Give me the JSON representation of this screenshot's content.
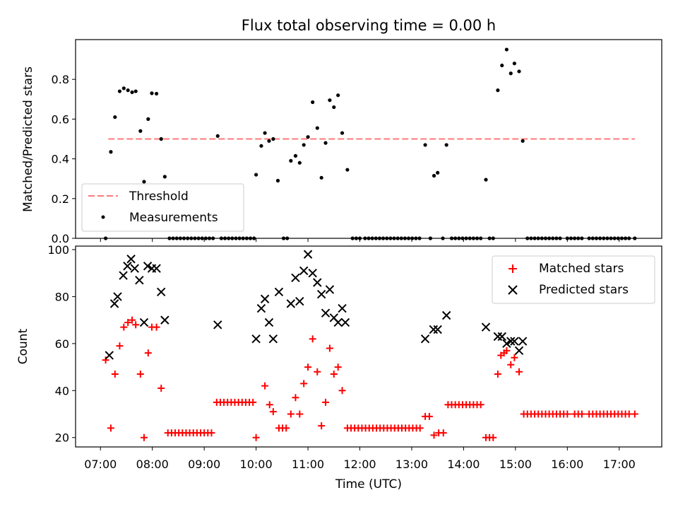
{
  "figure": {
    "title": "Flux total observing time = 0.00 h",
    "colors": {
      "threshold": "#ff7a7a",
      "measurements": "#000000",
      "matched": "#ff0000",
      "predicted": "#000000"
    }
  },
  "chart_data": [
    {
      "type": "scatter",
      "ylabel": "Matched/Predicted stars",
      "xlim": [
        6.52,
        17.82
      ],
      "ylim": [
        0,
        1.0
      ],
      "yticks": [
        0.0,
        0.2,
        0.4,
        0.6,
        0.8
      ],
      "ytick_labels": [
        "0.0",
        "0.2",
        "0.4",
        "0.6",
        "0.8"
      ],
      "x_tick_marks": [
        7,
        8,
        9,
        10,
        11,
        12,
        13,
        14,
        15,
        16,
        17
      ],
      "grid": false,
      "legend_position": "lower-left",
      "legend": [
        {
          "name": "Threshold",
          "marker": "dashed-line"
        },
        {
          "name": "Measurements",
          "marker": "dot"
        }
      ],
      "threshold": {
        "name": "Threshold",
        "y": 0.5,
        "x": [
          7.15,
          17.3
        ]
      },
      "measurements": [
        [
          7.1,
          0.0
        ],
        [
          7.2,
          0.435
        ],
        [
          7.28,
          0.61
        ],
        [
          7.37,
          0.74
        ],
        [
          7.45,
          0.755
        ],
        [
          7.53,
          0.745
        ],
        [
          7.61,
          0.735
        ],
        [
          7.68,
          0.74
        ],
        [
          7.77,
          0.54
        ],
        [
          7.84,
          0.285
        ],
        [
          7.92,
          0.6
        ],
        [
          7.99,
          0.73
        ],
        [
          8.08,
          0.728
        ],
        [
          8.17,
          0.5
        ],
        [
          8.24,
          0.31
        ],
        [
          8.33,
          0.0
        ],
        [
          8.4,
          0.0
        ],
        [
          8.47,
          0.0
        ],
        [
          8.54,
          0.0
        ],
        [
          8.61,
          0.0
        ],
        [
          8.68,
          0.0
        ],
        [
          8.75,
          0.0
        ],
        [
          8.82,
          0.0
        ],
        [
          8.89,
          0.0
        ],
        [
          8.96,
          0.0
        ],
        [
          9.03,
          0.0
        ],
        [
          9.1,
          0.0
        ],
        [
          9.17,
          0.0
        ],
        [
          9.26,
          0.515
        ],
        [
          9.33,
          0.0
        ],
        [
          9.4,
          0.0
        ],
        [
          9.47,
          0.0
        ],
        [
          9.54,
          0.0
        ],
        [
          9.61,
          0.0
        ],
        [
          9.68,
          0.0
        ],
        [
          9.75,
          0.0
        ],
        [
          9.82,
          0.0
        ],
        [
          9.89,
          0.0
        ],
        [
          9.96,
          0.0
        ],
        [
          10.0,
          0.32
        ],
        [
          10.1,
          0.465
        ],
        [
          10.17,
          0.53
        ],
        [
          10.25,
          0.49
        ],
        [
          10.33,
          0.5
        ],
        [
          10.42,
          0.29
        ],
        [
          10.53,
          0.0
        ],
        [
          10.6,
          0.0
        ],
        [
          10.67,
          0.39
        ],
        [
          10.76,
          0.415
        ],
        [
          10.84,
          0.38
        ],
        [
          10.92,
          0.47
        ],
        [
          11.0,
          0.51
        ],
        [
          11.09,
          0.685
        ],
        [
          11.18,
          0.555
        ],
        [
          11.26,
          0.305
        ],
        [
          11.34,
          0.48
        ],
        [
          11.42,
          0.695
        ],
        [
          11.5,
          0.66
        ],
        [
          11.58,
          0.72
        ],
        [
          11.66,
          0.53
        ],
        [
          11.76,
          0.345
        ],
        [
          11.86,
          0.0
        ],
        [
          11.93,
          0.0
        ],
        [
          12.0,
          0.0
        ],
        [
          12.1,
          0.0
        ],
        [
          12.17,
          0.0
        ],
        [
          12.24,
          0.0
        ],
        [
          12.31,
          0.0
        ],
        [
          12.38,
          0.0
        ],
        [
          12.45,
          0.0
        ],
        [
          12.52,
          0.0
        ],
        [
          12.59,
          0.0
        ],
        [
          12.66,
          0.0
        ],
        [
          12.73,
          0.0
        ],
        [
          12.8,
          0.0
        ],
        [
          12.87,
          0.0
        ],
        [
          12.94,
          0.0
        ],
        [
          13.01,
          0.0
        ],
        [
          13.08,
          0.0
        ],
        [
          13.15,
          0.0
        ],
        [
          13.26,
          0.47
        ],
        [
          13.36,
          0.0
        ],
        [
          13.43,
          0.315
        ],
        [
          13.5,
          0.33
        ],
        [
          13.6,
          0.0
        ],
        [
          13.67,
          0.47
        ],
        [
          13.77,
          0.0
        ],
        [
          13.84,
          0.0
        ],
        [
          13.91,
          0.0
        ],
        [
          13.98,
          0.0
        ],
        [
          14.05,
          0.0
        ],
        [
          14.12,
          0.0
        ],
        [
          14.19,
          0.0
        ],
        [
          14.26,
          0.0
        ],
        [
          14.33,
          0.0
        ],
        [
          14.43,
          0.295
        ],
        [
          14.5,
          0.0
        ],
        [
          14.57,
          0.0
        ],
        [
          14.66,
          0.745
        ],
        [
          14.74,
          0.87
        ],
        [
          14.83,
          0.95
        ],
        [
          14.91,
          0.83
        ],
        [
          14.98,
          0.88
        ],
        [
          15.07,
          0.84
        ],
        [
          15.14,
          0.49
        ],
        [
          15.23,
          0.0
        ],
        [
          15.3,
          0.0
        ],
        [
          15.37,
          0.0
        ],
        [
          15.44,
          0.0
        ],
        [
          15.51,
          0.0
        ],
        [
          15.58,
          0.0
        ],
        [
          15.65,
          0.0
        ],
        [
          15.72,
          0.0
        ],
        [
          15.79,
          0.0
        ],
        [
          15.86,
          0.0
        ],
        [
          16.0,
          0.0
        ],
        [
          16.07,
          0.0
        ],
        [
          16.14,
          0.0
        ],
        [
          16.21,
          0.0
        ],
        [
          16.28,
          0.0
        ],
        [
          16.42,
          0.0
        ],
        [
          16.49,
          0.0
        ],
        [
          16.56,
          0.0
        ],
        [
          16.63,
          0.0
        ],
        [
          16.7,
          0.0
        ],
        [
          16.77,
          0.0
        ],
        [
          16.84,
          0.0
        ],
        [
          16.91,
          0.0
        ],
        [
          16.98,
          0.0
        ],
        [
          17.05,
          0.0
        ],
        [
          17.12,
          0.0
        ],
        [
          17.19,
          0.0
        ],
        [
          17.3,
          0.0
        ]
      ]
    },
    {
      "type": "scatter",
      "xlabel": "Time (UTC)",
      "ylabel": "Count",
      "xlim": [
        6.52,
        17.82
      ],
      "ylim": [
        16,
        101.5
      ],
      "xticks": [
        7,
        8,
        9,
        10,
        11,
        12,
        13,
        14,
        15,
        16,
        17
      ],
      "xtick_labels": [
        "07:00",
        "08:00",
        "09:00",
        "10:00",
        "11:00",
        "12:00",
        "13:00",
        "14:00",
        "15:00",
        "16:00",
        "17:00"
      ],
      "yticks": [
        20,
        40,
        60,
        80,
        100
      ],
      "ytick_labels": [
        "20",
        "40",
        "60",
        "80",
        "100"
      ],
      "grid": false,
      "legend_position": "upper-right",
      "legend": [
        {
          "name": "Matched stars",
          "marker": "plus"
        },
        {
          "name": "Predicted stars",
          "marker": "x"
        }
      ],
      "matched": [
        [
          7.1,
          53
        ],
        [
          7.2,
          24
        ],
        [
          7.28,
          47
        ],
        [
          7.37,
          59
        ],
        [
          7.45,
          67
        ],
        [
          7.53,
          69
        ],
        [
          7.61,
          70
        ],
        [
          7.68,
          68
        ],
        [
          7.77,
          47
        ],
        [
          7.84,
          20
        ],
        [
          7.92,
          56
        ],
        [
          7.99,
          67
        ],
        [
          8.08,
          67
        ],
        [
          8.17,
          41
        ],
        [
          8.3,
          22
        ],
        [
          8.37,
          22
        ],
        [
          8.44,
          22
        ],
        [
          8.51,
          22
        ],
        [
          8.58,
          22
        ],
        [
          8.65,
          22
        ],
        [
          8.72,
          22
        ],
        [
          8.79,
          22
        ],
        [
          8.86,
          22
        ],
        [
          8.93,
          22
        ],
        [
          9.0,
          22
        ],
        [
          9.07,
          22
        ],
        [
          9.14,
          22
        ],
        [
          9.24,
          35
        ],
        [
          9.31,
          35
        ],
        [
          9.38,
          35
        ],
        [
          9.45,
          35
        ],
        [
          9.52,
          35
        ],
        [
          9.59,
          35
        ],
        [
          9.66,
          35
        ],
        [
          9.73,
          35
        ],
        [
          9.8,
          35
        ],
        [
          9.87,
          35
        ],
        [
          9.94,
          35
        ],
        [
          10.0,
          20
        ],
        [
          10.17,
          42
        ],
        [
          10.26,
          34
        ],
        [
          10.33,
          31
        ],
        [
          10.44,
          24
        ],
        [
          10.51,
          24
        ],
        [
          10.58,
          24
        ],
        [
          10.67,
          30
        ],
        [
          10.76,
          37
        ],
        [
          10.84,
          30
        ],
        [
          10.92,
          43
        ],
        [
          11.0,
          50
        ],
        [
          11.09,
          62
        ],
        [
          11.18,
          48
        ],
        [
          11.26,
          25
        ],
        [
          11.34,
          35
        ],
        [
          11.42,
          58
        ],
        [
          11.5,
          47
        ],
        [
          11.58,
          50
        ],
        [
          11.66,
          40
        ],
        [
          11.76,
          24
        ],
        [
          11.83,
          24
        ],
        [
          11.9,
          24
        ],
        [
          11.97,
          24
        ],
        [
          12.04,
          24
        ],
        [
          12.11,
          24
        ],
        [
          12.18,
          24
        ],
        [
          12.25,
          24
        ],
        [
          12.32,
          24
        ],
        [
          12.39,
          24
        ],
        [
          12.46,
          24
        ],
        [
          12.53,
          24
        ],
        [
          12.6,
          24
        ],
        [
          12.67,
          24
        ],
        [
          12.74,
          24
        ],
        [
          12.81,
          24
        ],
        [
          12.88,
          24
        ],
        [
          12.95,
          24
        ],
        [
          13.02,
          24
        ],
        [
          13.09,
          24
        ],
        [
          13.16,
          24
        ],
        [
          13.26,
          29
        ],
        [
          13.34,
          29
        ],
        [
          13.43,
          21
        ],
        [
          13.52,
          22
        ],
        [
          13.61,
          22
        ],
        [
          13.7,
          34
        ],
        [
          13.77,
          34
        ],
        [
          13.84,
          34
        ],
        [
          13.91,
          34
        ],
        [
          13.98,
          34
        ],
        [
          14.05,
          34
        ],
        [
          14.12,
          34
        ],
        [
          14.19,
          34
        ],
        [
          14.26,
          34
        ],
        [
          14.33,
          34
        ],
        [
          14.43,
          20
        ],
        [
          14.5,
          20
        ],
        [
          14.57,
          20
        ],
        [
          14.66,
          47
        ],
        [
          14.72,
          55
        ],
        [
          14.78,
          56
        ],
        [
          14.83,
          57
        ],
        [
          14.91,
          51
        ],
        [
          14.98,
          54
        ],
        [
          15.07,
          48
        ],
        [
          15.16,
          30
        ],
        [
          15.23,
          30
        ],
        [
          15.3,
          30
        ],
        [
          15.37,
          30
        ],
        [
          15.44,
          30
        ],
        [
          15.51,
          30
        ],
        [
          15.58,
          30
        ],
        [
          15.65,
          30
        ],
        [
          15.72,
          30
        ],
        [
          15.79,
          30
        ],
        [
          15.86,
          30
        ],
        [
          15.93,
          30
        ],
        [
          16.0,
          30
        ],
        [
          16.14,
          30
        ],
        [
          16.21,
          30
        ],
        [
          16.28,
          30
        ],
        [
          16.42,
          30
        ],
        [
          16.49,
          30
        ],
        [
          16.56,
          30
        ],
        [
          16.63,
          30
        ],
        [
          16.7,
          30
        ],
        [
          16.77,
          30
        ],
        [
          16.84,
          30
        ],
        [
          16.91,
          30
        ],
        [
          16.98,
          30
        ],
        [
          17.05,
          30
        ],
        [
          17.12,
          30
        ],
        [
          17.19,
          30
        ],
        [
          17.3,
          30
        ]
      ],
      "predicted": [
        [
          7.17,
          55
        ],
        [
          7.27,
          77
        ],
        [
          7.33,
          80
        ],
        [
          7.44,
          89
        ],
        [
          7.52,
          93
        ],
        [
          7.59,
          96
        ],
        [
          7.66,
          92
        ],
        [
          7.75,
          87
        ],
        [
          7.84,
          69
        ],
        [
          7.91,
          93
        ],
        [
          7.99,
          92
        ],
        [
          8.08,
          92
        ],
        [
          8.17,
          82
        ],
        [
          8.24,
          70
        ],
        [
          9.26,
          68
        ],
        [
          10.0,
          62
        ],
        [
          10.1,
          75
        ],
        [
          10.17,
          79
        ],
        [
          10.25,
          69
        ],
        [
          10.33,
          62
        ],
        [
          10.44,
          82
        ],
        [
          10.67,
          77
        ],
        [
          10.76,
          88
        ],
        [
          10.84,
          78
        ],
        [
          10.92,
          91
        ],
        [
          11.0,
          98
        ],
        [
          11.09,
          90
        ],
        [
          11.18,
          86
        ],
        [
          11.26,
          81
        ],
        [
          11.34,
          73
        ],
        [
          11.42,
          83
        ],
        [
          11.5,
          71
        ],
        [
          11.58,
          69
        ],
        [
          11.66,
          75
        ],
        [
          11.72,
          69
        ],
        [
          13.26,
          62
        ],
        [
          13.42,
          66
        ],
        [
          13.5,
          66
        ],
        [
          13.67,
          72
        ],
        [
          14.43,
          67
        ],
        [
          14.66,
          63
        ],
        [
          14.74,
          63
        ],
        [
          14.83,
          60
        ],
        [
          14.91,
          61
        ],
        [
          14.98,
          61
        ],
        [
          15.07,
          57
        ],
        [
          15.14,
          61
        ]
      ]
    }
  ]
}
